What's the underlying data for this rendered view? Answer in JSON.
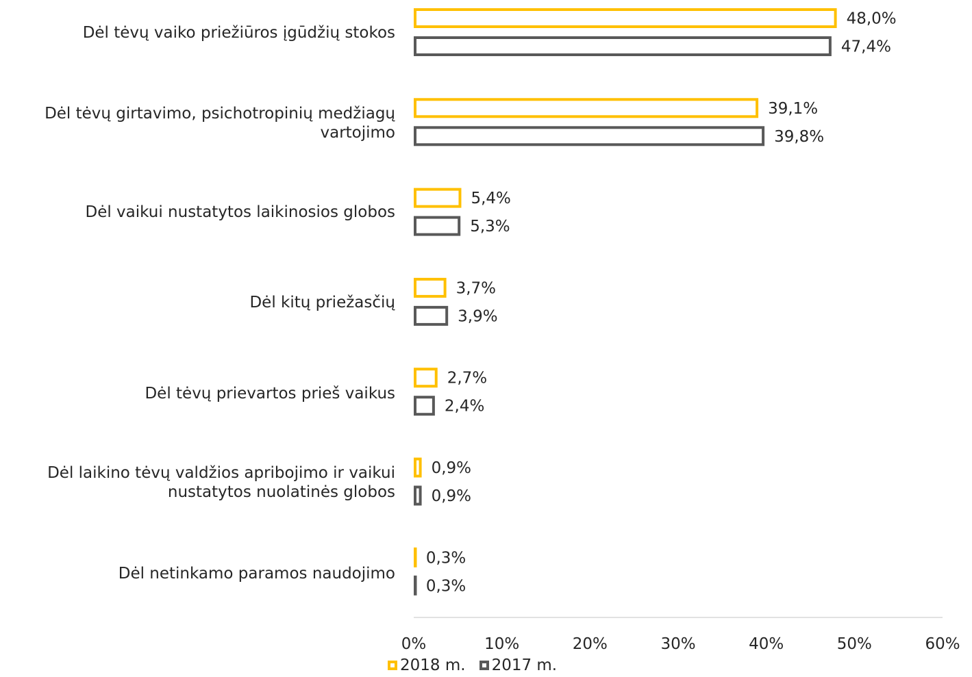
{
  "chart_data": {
    "type": "bar",
    "orientation": "horizontal",
    "categories": [
      "Dėl tėvų vaiko priežiūros įgūdžių stokos",
      "Dėl tėvų girtavimo, psichotropinių medžiagų vartojimo",
      "Dėl vaikui nustatytos laikinosios globos",
      "Dėl kitų priežasčių",
      "Dėl tėvų prievartos prieš vaikus",
      "Dėl laikino tėvų valdžios apribojimo ir vaikui nustatytos nuolatinės globos",
      "Dėl netinkamo paramos naudojimo"
    ],
    "series": [
      {
        "name": "2018 m.",
        "color": "#FFC000",
        "values": [
          48.0,
          39.1,
          5.4,
          3.7,
          2.7,
          0.9,
          0.3
        ],
        "labels": [
          "48,0%",
          "39,1%",
          "5,4%",
          "3,7%",
          "2,7%",
          "0,9%",
          "0,3%"
        ]
      },
      {
        "name": "2017 m.",
        "color": "#595959",
        "values": [
          47.4,
          39.8,
          5.3,
          3.9,
          2.4,
          0.9,
          0.3
        ],
        "labels": [
          "47,4%",
          "39,8%",
          "5,3%",
          "3,9%",
          "2,4%",
          "0,9%",
          "0,3%"
        ]
      }
    ],
    "xlim": [
      0,
      60
    ],
    "xticks": [
      "0%",
      "10%",
      "20%",
      "30%",
      "40%",
      "50%",
      "60%"
    ],
    "grid": false,
    "legend_position": "bottom"
  }
}
